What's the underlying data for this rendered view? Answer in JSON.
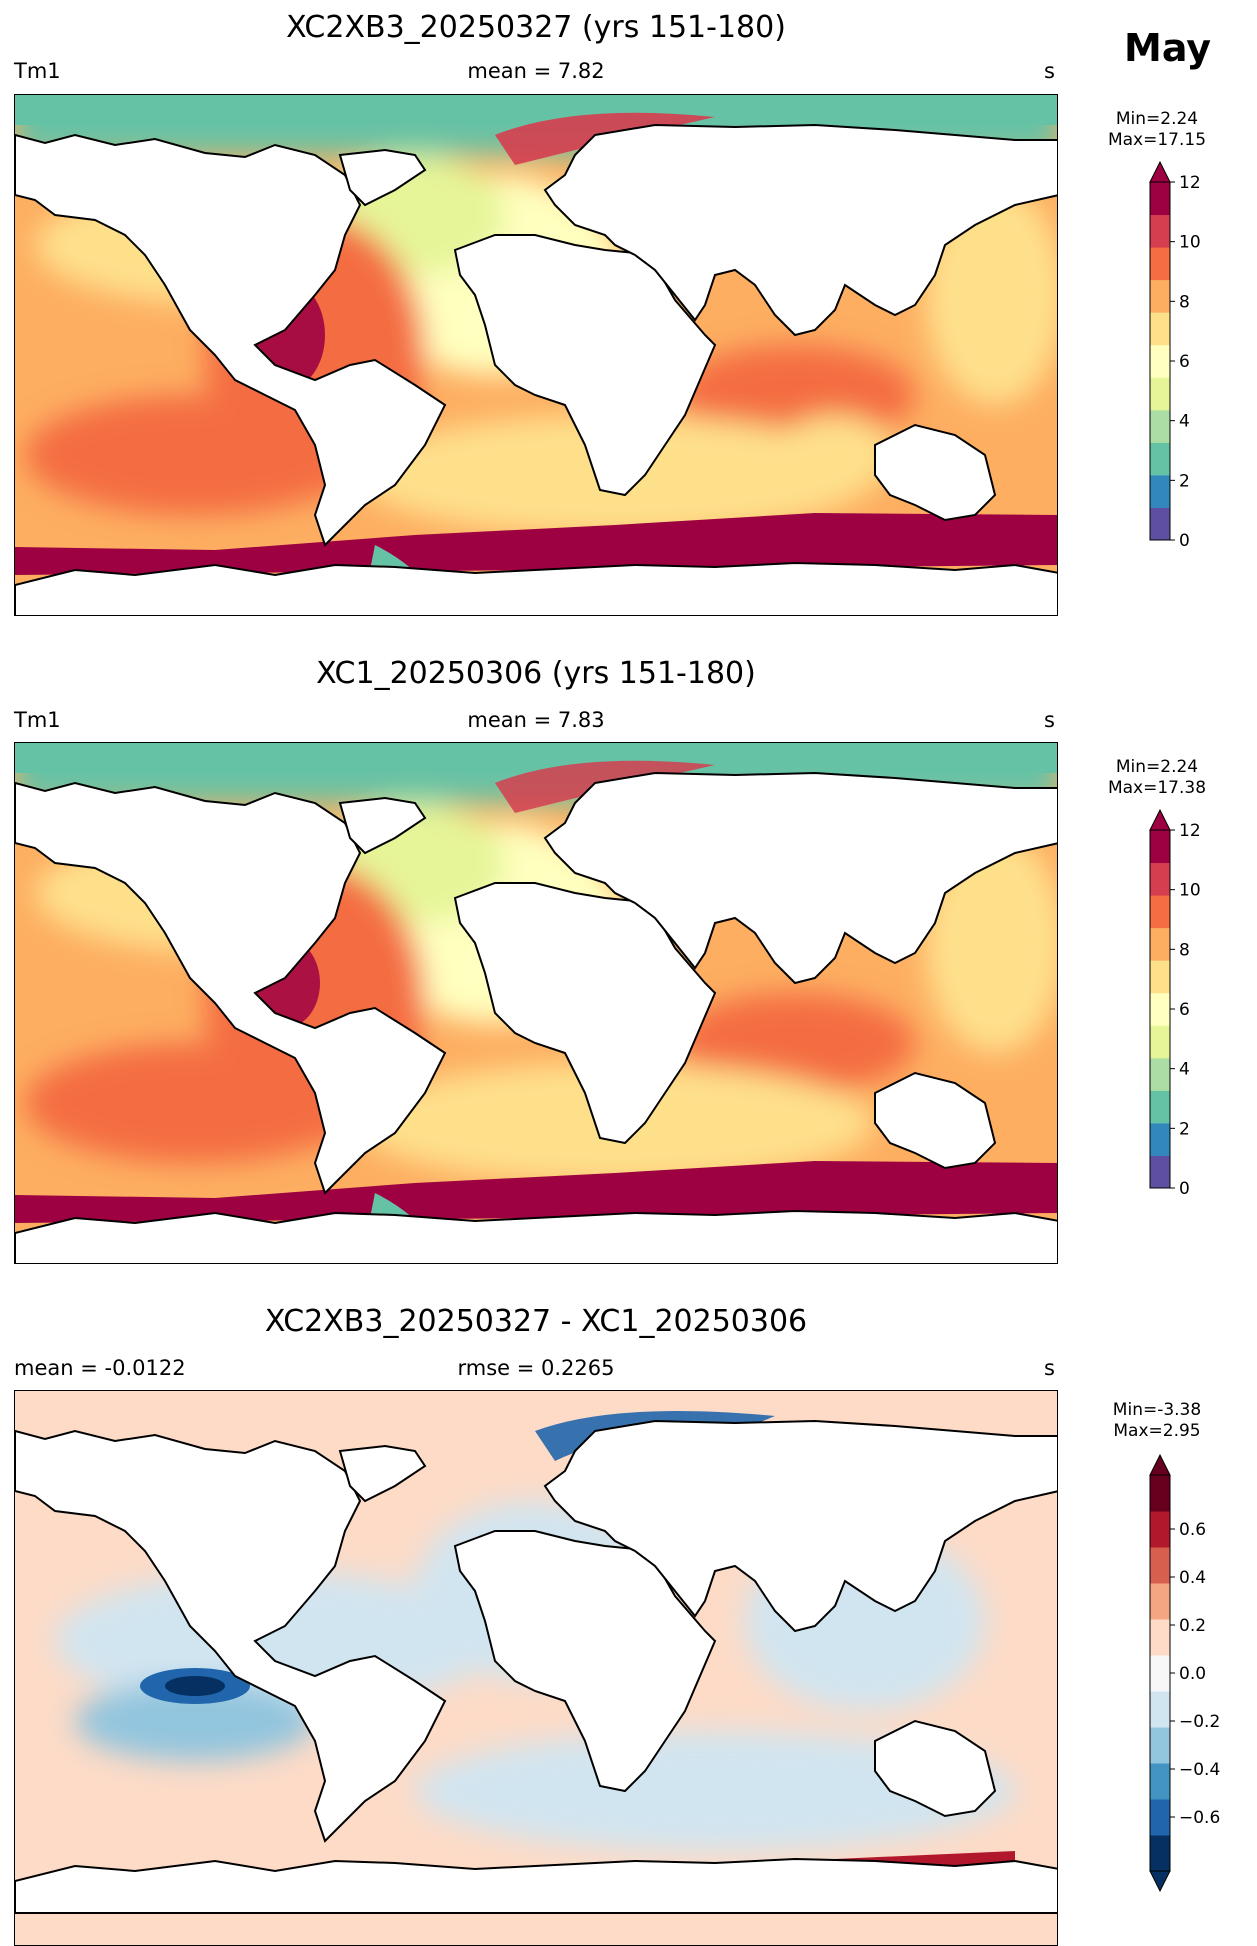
{
  "month": "May",
  "panels": [
    {
      "id": "p1",
      "title": "XC2XB3_20250327 (yrs 151-180)",
      "left_label": "Tm1",
      "center_label": "mean = 7.82",
      "right_label": "s",
      "minmax": "Min=2.24\nMax=17.15",
      "colorbar": {
        "ticks": [
          "0",
          "2",
          "4",
          "6",
          "8",
          "10",
          "12"
        ],
        "extend": "max"
      }
    },
    {
      "id": "p2",
      "title": "XC1_20250306 (yrs 151-180)",
      "left_label": "Tm1",
      "center_label": "mean = 7.83",
      "right_label": "s",
      "minmax": "Min=2.24\nMax=17.38",
      "colorbar": {
        "ticks": [
          "0",
          "2",
          "4",
          "6",
          "8",
          "10",
          "12"
        ],
        "extend": "max"
      }
    },
    {
      "id": "p3",
      "title": "XC2XB3_20250327 - XC1_20250306",
      "left_label": "mean = -0.0122",
      "center_label": "rmse = 0.2265",
      "right_label": "s",
      "minmax": "Min=-3.38\nMax=2.95",
      "colorbar": {
        "ticks": [
          "0.6",
          "0.4",
          "0.2",
          "0.0",
          "−0.2",
          "−0.4",
          "−0.6"
        ],
        "extend": "both"
      }
    }
  ],
  "colors": {
    "seq": [
      "#5e4fa2",
      "#3288bd",
      "#66c2a5",
      "#abdda4",
      "#e6f598",
      "#ffffbf",
      "#fee08b",
      "#fdae61",
      "#f46d43",
      "#d53e4f",
      "#9e0142"
    ],
    "div": [
      "#053061",
      "#2166ac",
      "#4393c3",
      "#92c5de",
      "#d1e5f0",
      "#f7f7f7",
      "#fddbc7",
      "#f4a582",
      "#d6604d",
      "#b2182b",
      "#67001f"
    ]
  }
}
